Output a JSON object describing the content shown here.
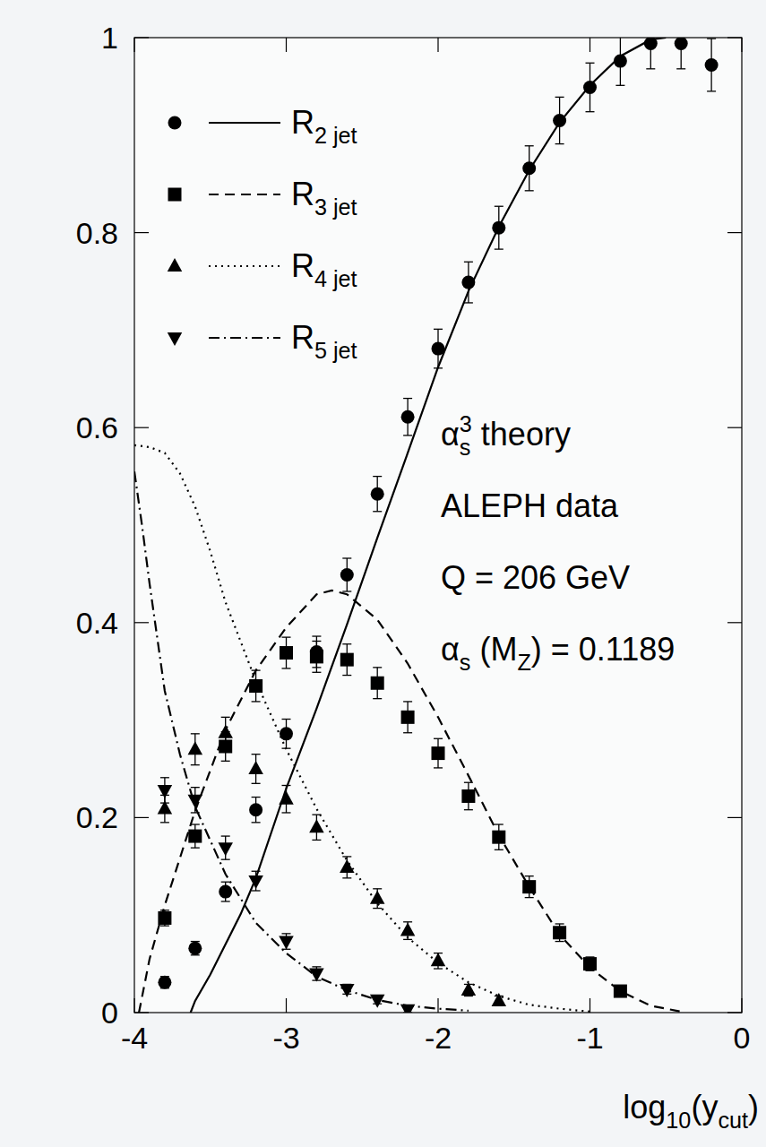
{
  "chart_data": {
    "type": "scatter",
    "x_label": {
      "text": "log10(ycut)",
      "sub": [
        "10",
        "cut"
      ]
    },
    "xlim": [
      -4,
      0
    ],
    "xticks": [
      -4,
      -3,
      -2,
      -1,
      0
    ],
    "ylim": [
      0,
      1
    ],
    "yticks": [
      0,
      0.2,
      0.4,
      0.6,
      0.8,
      1
    ],
    "legend": "upper left",
    "grid": false,
    "annotations": [
      {
        "text": "αs3 theory",
        "sub": [
          "s"
        ],
        "sup": [
          "3"
        ]
      },
      {
        "text": "ALEPH data"
      },
      {
        "text": "Q = 206 GeV"
      },
      {
        "text": "αs (MZ) = 0.1189",
        "sub": [
          "s",
          "Z"
        ]
      }
    ],
    "series": [
      {
        "name": {
          "text": "R2 jet",
          "sub": [
            "2 jet"
          ]
        },
        "color": "#000000",
        "marker": "circle",
        "line_style": "solid",
        "x": [
          -3.8,
          -3.6,
          -3.4,
          -3.2,
          -3.0,
          -2.8,
          -2.6,
          -2.4,
          -2.2,
          -2.0,
          -1.8,
          -1.6,
          -1.4,
          -1.2,
          -1.0,
          -0.8,
          -0.6,
          -0.4,
          -0.2
        ],
        "values": [
          0.031,
          0.066,
          0.124,
          0.208,
          0.286,
          0.37,
          0.449,
          0.532,
          0.611,
          0.681,
          0.749,
          0.805,
          0.866,
          0.915,
          0.949,
          0.976,
          0.994,
          0.994,
          0.972
        ],
        "errors": [
          0.006,
          0.007,
          0.01,
          0.013,
          0.015,
          0.016,
          0.017,
          0.018,
          0.019,
          0.02,
          0.021,
          0.022,
          0.023,
          0.024,
          0.025,
          0.025,
          0.026,
          0.026,
          0.027
        ],
        "theory_x": [
          -3.63,
          -3.6,
          -3.5,
          -3.4,
          -3.3,
          -3.2,
          -3.0,
          -2.8,
          -2.6,
          -2.4,
          -2.2,
          -2.0,
          -1.8,
          -1.6,
          -1.4,
          -1.2,
          -1.0,
          -0.8,
          -0.6,
          -0.5
        ],
        "theory_values": [
          0,
          0.012,
          0.039,
          0.07,
          0.101,
          0.138,
          0.23,
          0.312,
          0.398,
          0.487,
          0.574,
          0.662,
          0.74,
          0.806,
          0.864,
          0.913,
          0.951,
          0.981,
          0.998,
          1.0
        ]
      },
      {
        "name": {
          "text": "R3 jet",
          "sub": [
            "3 jet"
          ]
        },
        "color": "#000000",
        "marker": "square",
        "line_style": "dashed",
        "x": [
          -3.8,
          -3.6,
          -3.4,
          -3.2,
          -3.0,
          -2.8,
          -2.6,
          -2.4,
          -2.2,
          -2.0,
          -1.8,
          -1.6,
          -1.4,
          -1.2,
          -1.0,
          -0.8
        ],
        "values": [
          0.097,
          0.181,
          0.273,
          0.335,
          0.369,
          0.365,
          0.362,
          0.338,
          0.303,
          0.266,
          0.222,
          0.18,
          0.129,
          0.082,
          0.05,
          0.022
        ],
        "errors": [
          0.008,
          0.012,
          0.015,
          0.016,
          0.016,
          0.016,
          0.016,
          0.016,
          0.016,
          0.015,
          0.014,
          0.013,
          0.011,
          0.009,
          0.007,
          0.005
        ],
        "theory_x": [
          -3.97,
          -3.9,
          -3.8,
          -3.6,
          -3.4,
          -3.2,
          -3.0,
          -2.8,
          -2.7,
          -2.6,
          -2.4,
          -2.2,
          -2.0,
          -1.8,
          -1.6,
          -1.4,
          -1.2,
          -1.0,
          -0.8,
          -0.6,
          -0.4
        ],
        "theory_values": [
          0,
          0.055,
          0.11,
          0.207,
          0.29,
          0.351,
          0.395,
          0.429,
          0.433,
          0.429,
          0.403,
          0.358,
          0.303,
          0.243,
          0.182,
          0.129,
          0.08,
          0.046,
          0.022,
          0.007,
          0.001
        ]
      },
      {
        "name": {
          "text": "R4 jet",
          "sub": [
            "4 jet"
          ]
        },
        "color": "#000000",
        "marker": "triangle-up",
        "line_style": "dotted",
        "x": [
          -3.8,
          -3.6,
          -3.4,
          -3.2,
          -3.0,
          -2.8,
          -2.6,
          -2.4,
          -2.2,
          -2.0,
          -1.8,
          -1.6
        ],
        "values": [
          0.209,
          0.27,
          0.287,
          0.25,
          0.219,
          0.19,
          0.149,
          0.117,
          0.084,
          0.053,
          0.023,
          0.012
        ],
        "errors": [
          0.014,
          0.016,
          0.016,
          0.015,
          0.014,
          0.013,
          0.011,
          0.01,
          0.009,
          0.008,
          0.006,
          0.005
        ],
        "theory_x": [
          -4.0,
          -3.9,
          -3.8,
          -3.7,
          -3.6,
          -3.5,
          -3.4,
          -3.2,
          -3.0,
          -2.8,
          -2.6,
          -2.4,
          -2.2,
          -2.0,
          -1.8,
          -1.6,
          -1.4,
          -1.2,
          -1.0
        ],
        "theory_values": [
          0.582,
          0.58,
          0.574,
          0.553,
          0.519,
          0.473,
          0.421,
          0.34,
          0.27,
          0.209,
          0.156,
          0.112,
          0.077,
          0.051,
          0.031,
          0.017,
          0.008,
          0.004,
          0.001
        ]
      },
      {
        "name": {
          "text": "R5 jet",
          "sub": [
            "5 jet"
          ]
        },
        "color": "#000000",
        "marker": "triangle-down",
        "line_style": "dashdot",
        "x": [
          -3.8,
          -3.6,
          -3.4,
          -3.2,
          -3.0,
          -2.8,
          -2.6,
          -2.4,
          -2.2
        ],
        "values": [
          0.228,
          0.218,
          0.169,
          0.135,
          0.073,
          0.04,
          0.024,
          0.013,
          0.003
        ],
        "errors": [
          0.013,
          0.013,
          0.012,
          0.01,
          0.008,
          0.007,
          0.005,
          0.004,
          0.003
        ],
        "theory_x": [
          -4.0,
          -3.95,
          -3.9,
          -3.8,
          -3.7,
          -3.6,
          -3.4,
          -3.2,
          -3.0,
          -2.8,
          -2.6,
          -2.4,
          -2.2,
          -2.0,
          -1.8
        ],
        "theory_values": [
          0.555,
          0.5,
          0.44,
          0.33,
          0.265,
          0.211,
          0.142,
          0.092,
          0.061,
          0.037,
          0.023,
          0.013,
          0.007,
          0.004,
          0.002
        ]
      }
    ]
  }
}
